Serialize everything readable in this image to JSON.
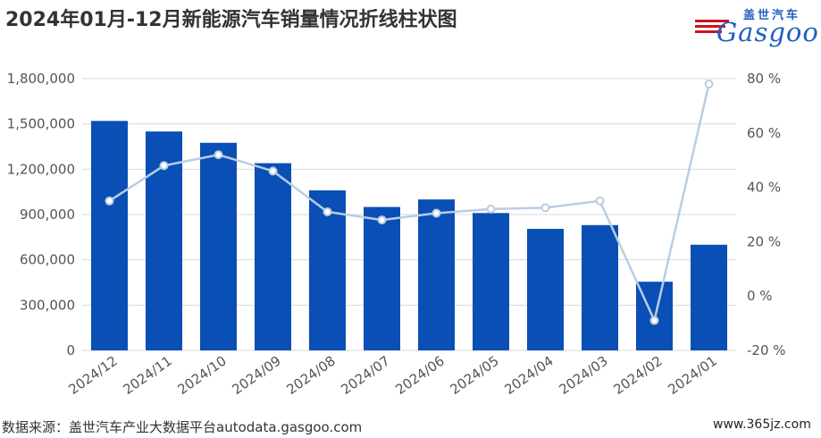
{
  "header": {
    "title": "2024年01月-12月新能源汽车销量情况折线柱状图"
  },
  "logo": {
    "text_cn": "盖世汽车",
    "text_en": "Gasgoo"
  },
  "footer": {
    "source": "数据来源：盖世汽车产业大数据平台autodata.gasgoo.com",
    "site": "www.365jz.com"
  },
  "colors": {
    "bar": "#0a4fb5",
    "line": "#b9cde3",
    "grid": "#d9d9d9",
    "marker_fill": "#ffffff"
  },
  "chart_data": {
    "type": "bar",
    "categories": [
      "2024/12",
      "2024/11",
      "2024/10",
      "2024/09",
      "2024/08",
      "2024/07",
      "2024/06",
      "2024/05",
      "2024/04",
      "2024/03",
      "2024/02",
      "2024/01"
    ],
    "series": [
      {
        "type": "bar",
        "axis": "left",
        "values": [
          1520000,
          1450000,
          1375000,
          1240000,
          1060000,
          950000,
          1000000,
          910000,
          805000,
          830000,
          455000,
          700000
        ]
      },
      {
        "type": "line",
        "axis": "right",
        "unit": "%",
        "values": [
          35,
          48,
          52,
          46,
          31,
          28,
          30.5,
          32,
          32.5,
          35,
          -9,
          78
        ]
      }
    ],
    "y_left": {
      "min": 0,
      "max": 1800000,
      "ticks": [
        "0",
        "300,000",
        "600,000",
        "900,000",
        "1,200,000",
        "1,500,000",
        "1,800,000"
      ]
    },
    "y_right": {
      "min": -20,
      "max": 80,
      "ticks": [
        "-20 %",
        "0 %",
        "20 %",
        "40 %",
        "60 %",
        "80 %"
      ]
    },
    "grid": true,
    "legend": "none"
  }
}
